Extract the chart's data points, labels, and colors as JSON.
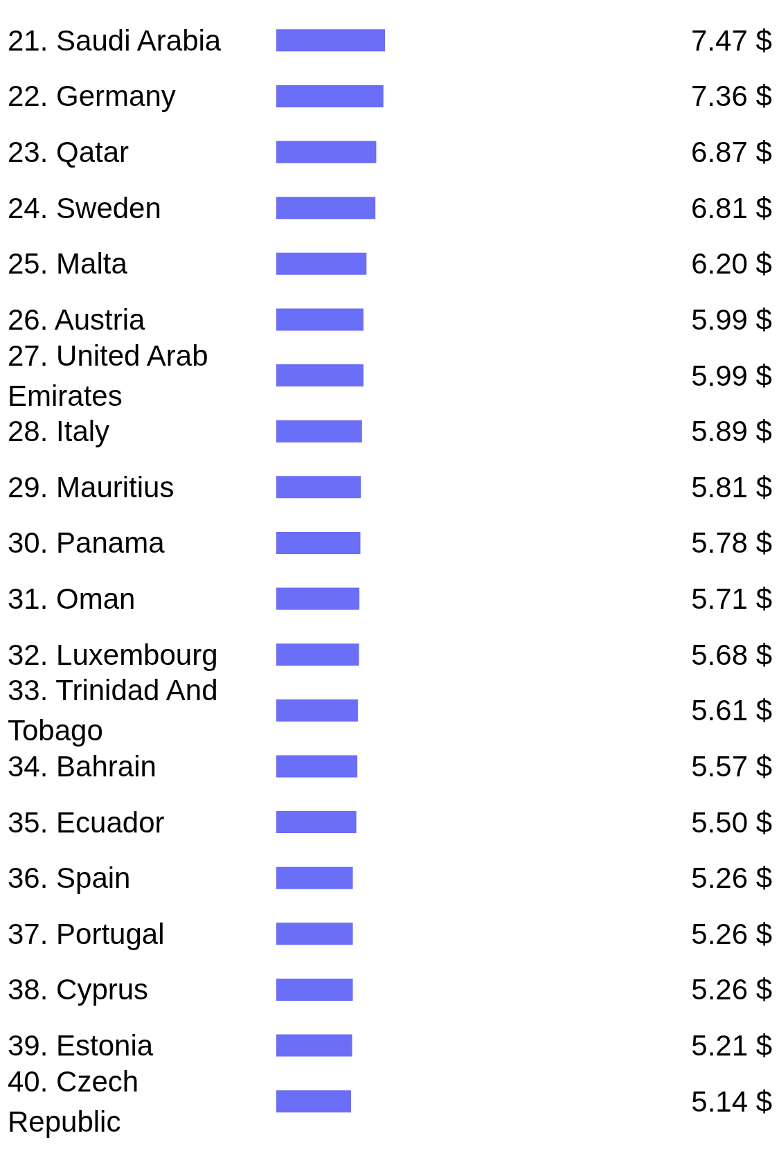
{
  "chart_data": {
    "type": "bar",
    "orientation": "horizontal",
    "categories": [
      "21. Saudi Arabia",
      "22. Germany",
      "23. Qatar",
      "24. Sweden",
      "25. Malta",
      "26. Austria",
      "27. United Arab Emirates",
      "28. Italy",
      "29. Mauritius",
      "30. Panama",
      "31. Oman",
      "32. Luxembourg",
      "33. Trinidad And Tobago",
      "34. Bahrain",
      "35. Ecuador",
      "36. Spain",
      "37. Portugal",
      "38. Cyprus",
      "39. Estonia",
      "40. Czech Republic"
    ],
    "values": [
      7.47,
      7.36,
      6.87,
      6.81,
      6.2,
      5.99,
      5.99,
      5.89,
      5.81,
      5.78,
      5.71,
      5.68,
      5.61,
      5.57,
      5.5,
      5.26,
      5.26,
      5.26,
      5.21,
      5.14
    ],
    "value_labels": [
      "7.47 $",
      "7.36 $",
      "6.87 $",
      "6.81 $",
      "6.20 $",
      "5.99 $",
      "5.99 $",
      "5.89 $",
      "5.81 $",
      "5.78 $",
      "5.71 $",
      "5.68 $",
      "5.61 $",
      "5.57 $",
      "5.50 $",
      "5.26 $",
      "5.26 $",
      "5.26 $",
      "5.21 $",
      "5.14 $"
    ],
    "color": "#6b6ef7",
    "tick_labels": "y"
  }
}
